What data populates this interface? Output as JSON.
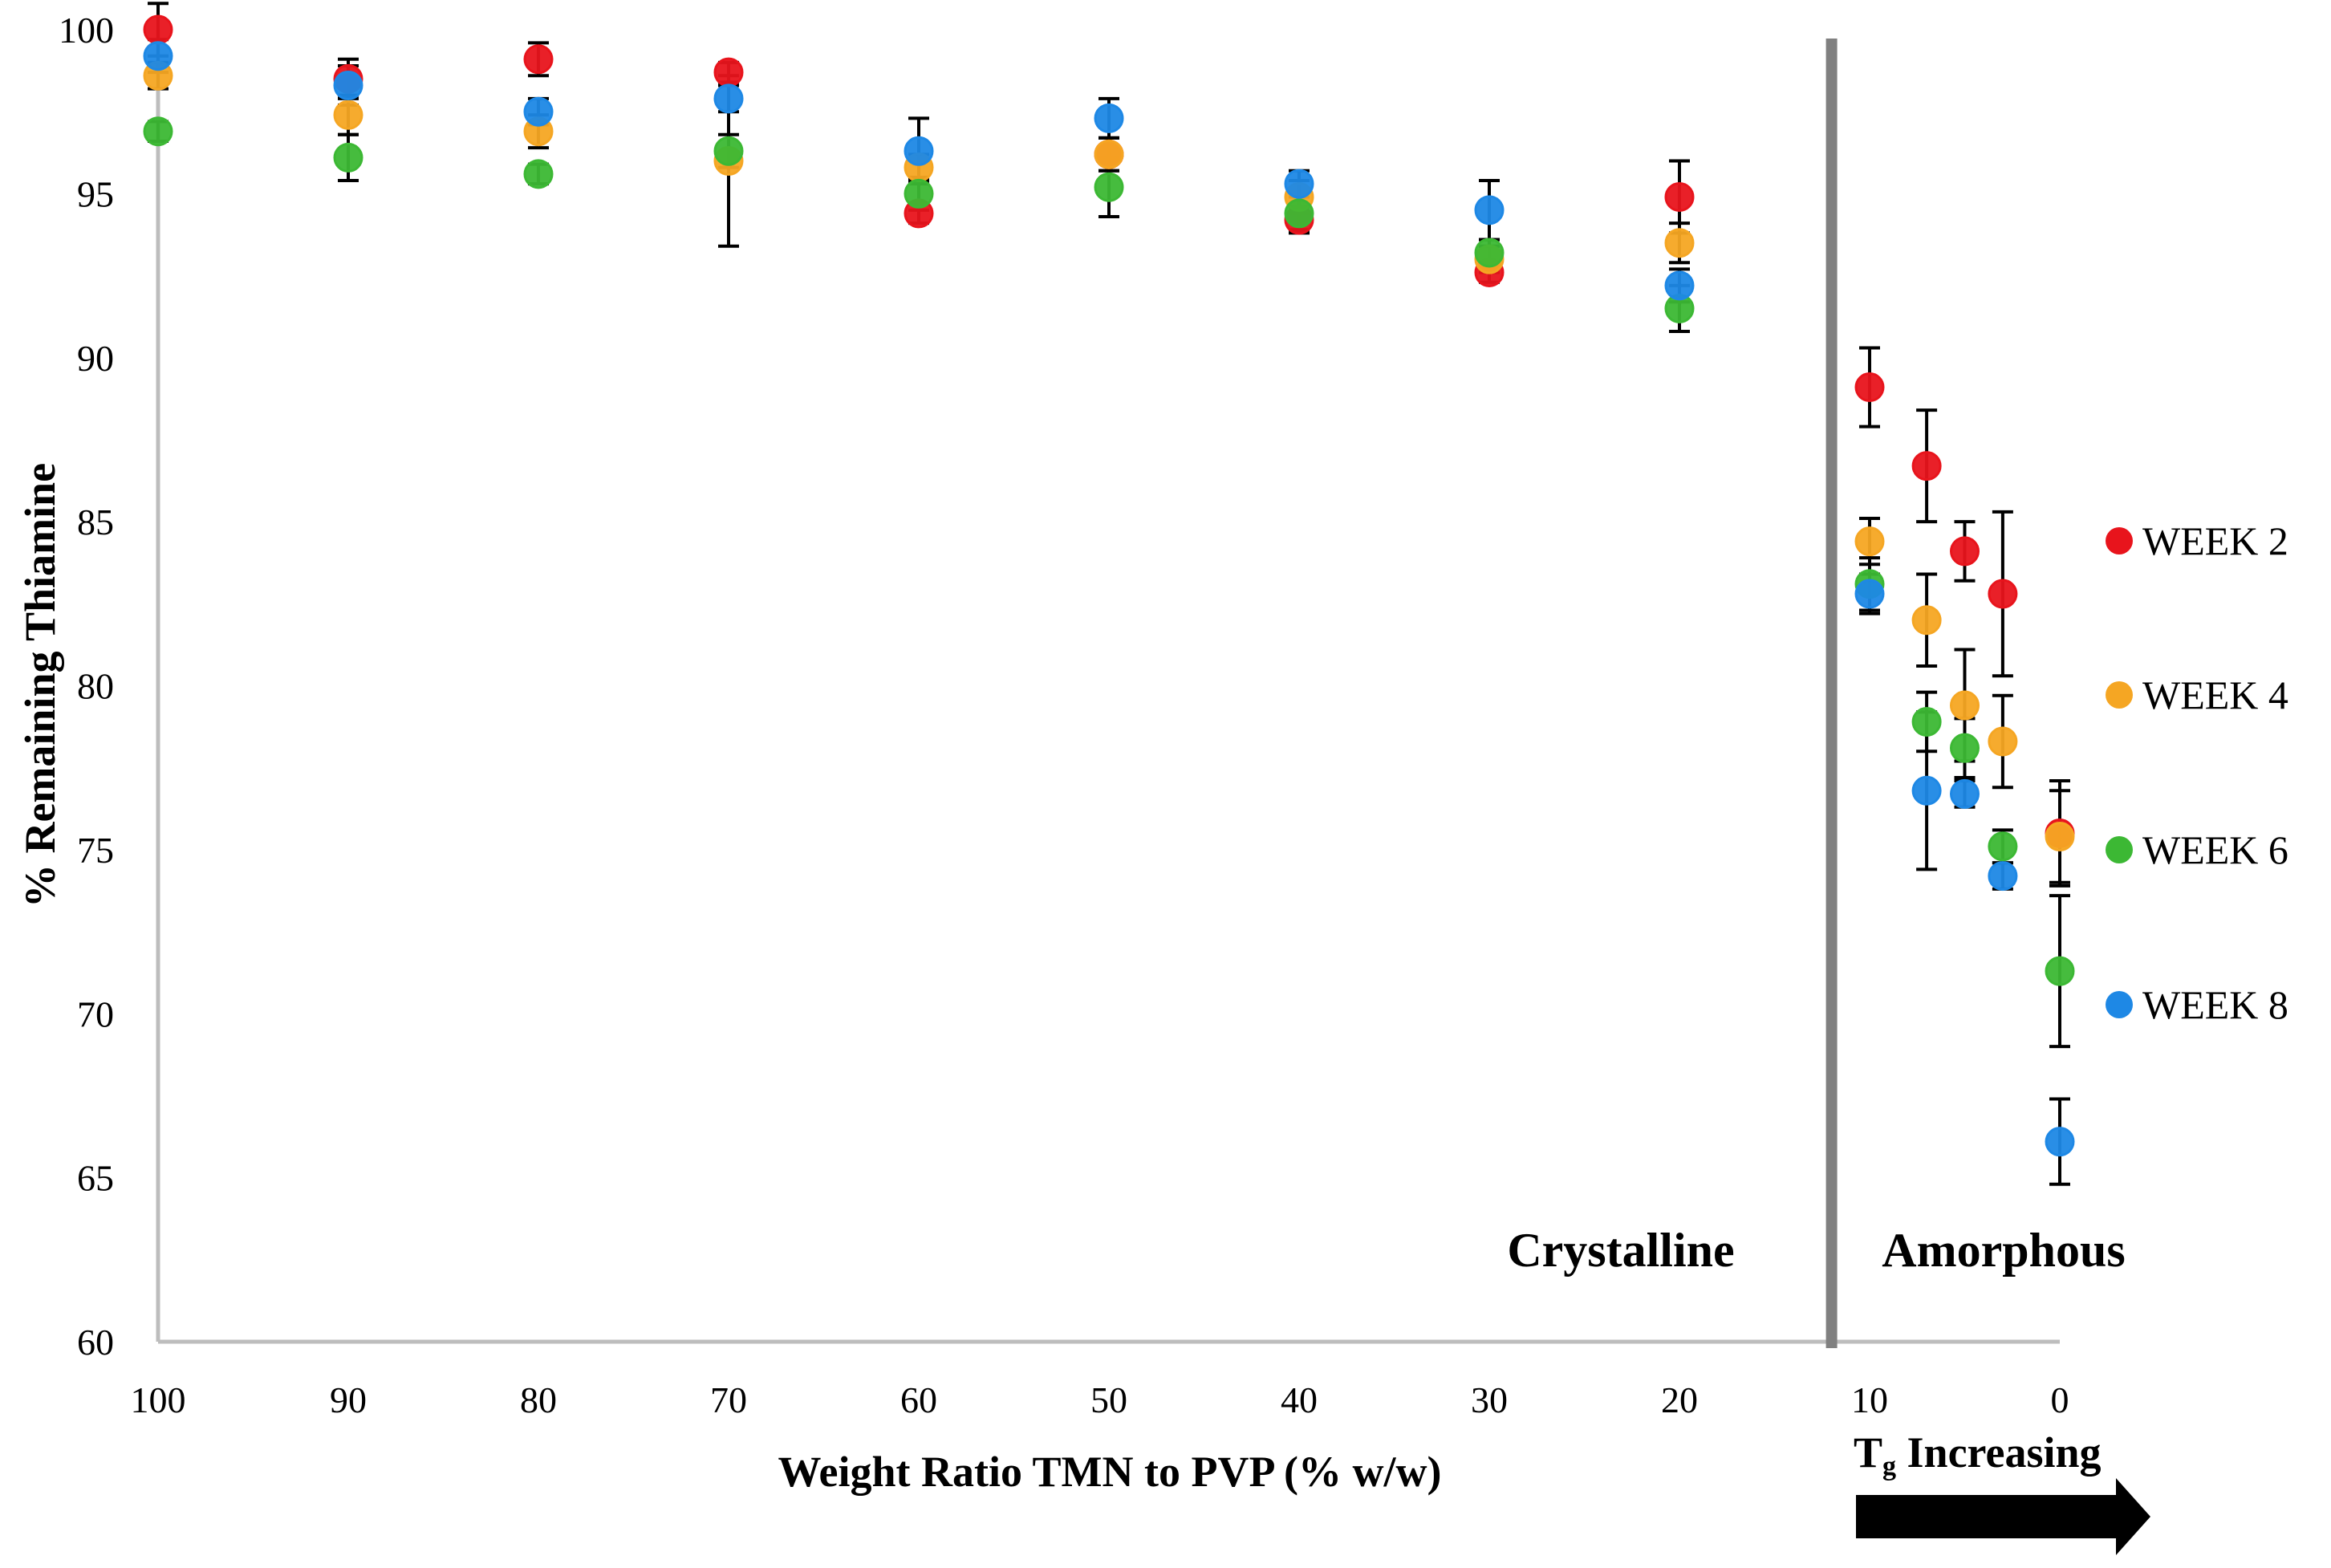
{
  "chart_data": {
    "type": "scatter",
    "title": "",
    "xlabel": "Weight Ratio TMN to PVP (% w/w)",
    "ylabel": "% Remaining Thiamine",
    "x_categories": [
      "100",
      "90",
      "80",
      "70",
      "60",
      "50",
      "40",
      "30",
      "20",
      "10",
      "0"
    ],
    "y_ticks": [
      "60",
      "65",
      "70",
      "75",
      "80",
      "85",
      "90",
      "95",
      "100"
    ],
    "xlim": [
      100,
      0
    ],
    "ylim": [
      60,
      100
    ],
    "grid": false,
    "legend_position": "right",
    "annotations": {
      "crystalline": "Crystalline",
      "amorphous": "Amorphous",
      "tg_main": "T",
      "tg_sub": "g",
      "tg_rest": " Increasing"
    },
    "divider_x": 12,
    "series": [
      {
        "name": "WEEK 2",
        "color": "#e8141c",
        "points": [
          {
            "x": 100,
            "y": 100.0,
            "err": 0.8
          },
          {
            "x": 90,
            "y": 98.5,
            "err": 0.6
          },
          {
            "x": 80,
            "y": 99.1,
            "err": 0.5
          },
          {
            "x": 70,
            "y": 98.7,
            "err": 0.3
          },
          {
            "x": 60,
            "y": 94.4,
            "err": 0.3
          },
          {
            "x": 50,
            "y": 96.2,
            "err": 0.5
          },
          {
            "x": 40,
            "y": 94.2,
            "err": 0.4
          },
          {
            "x": 30,
            "y": 92.6,
            "err": 0.3
          },
          {
            "x": 20,
            "y": 94.9,
            "err": 1.1
          },
          {
            "x": 10,
            "y": 89.1,
            "err": 1.2
          },
          {
            "x": 7,
            "y": 86.7,
            "err": 1.7
          },
          {
            "x": 5,
            "y": 84.1,
            "err": 0.9
          },
          {
            "x": 3,
            "y": 82.8,
            "err": 2.5
          },
          {
            "x": 0,
            "y": 75.5,
            "err": 1.6
          }
        ]
      },
      {
        "name": "WEEK 4",
        "color": "#f5a623",
        "points": [
          {
            "x": 100,
            "y": 98.6,
            "err": 0.4
          },
          {
            "x": 90,
            "y": 97.4,
            "err": 0.6
          },
          {
            "x": 80,
            "y": 96.9,
            "err": 0.5
          },
          {
            "x": 70,
            "y": 96.0,
            "err": 2.6
          },
          {
            "x": 60,
            "y": 95.8,
            "err": 0.4
          },
          {
            "x": 50,
            "y": 96.2,
            "err": 0.5
          },
          {
            "x": 40,
            "y": 94.9,
            "err": 0.5
          },
          {
            "x": 30,
            "y": 93.0,
            "err": 0.4
          },
          {
            "x": 20,
            "y": 93.5,
            "err": 0.6
          },
          {
            "x": 10,
            "y": 84.4,
            "err": 0.7
          },
          {
            "x": 7,
            "y": 82.0,
            "err": 1.4
          },
          {
            "x": 5,
            "y": 79.4,
            "err": 1.7
          },
          {
            "x": 3,
            "y": 78.3,
            "err": 1.4
          },
          {
            "x": 0,
            "y": 75.4,
            "err": 1.4
          }
        ]
      },
      {
        "name": "WEEK 6",
        "color": "#3cb834",
        "points": [
          {
            "x": 100,
            "y": 96.9,
            "err": 0.3
          },
          {
            "x": 90,
            "y": 96.1,
            "err": 0.7
          },
          {
            "x": 80,
            "y": 95.6,
            "err": 0.3
          },
          {
            "x": 70,
            "y": 96.3,
            "err": 0.5
          },
          {
            "x": 60,
            "y": 95.0,
            "err": 0.5
          },
          {
            "x": 50,
            "y": 95.2,
            "err": 0.9
          },
          {
            "x": 40,
            "y": 94.4,
            "err": 0.5
          },
          {
            "x": 30,
            "y": 93.2,
            "err": 0.4
          },
          {
            "x": 20,
            "y": 91.5,
            "err": 0.7
          },
          {
            "x": 10,
            "y": 83.1,
            "err": 0.8
          },
          {
            "x": 7,
            "y": 78.9,
            "err": 0.9
          },
          {
            "x": 5,
            "y": 78.1,
            "err": 0.9
          },
          {
            "x": 3,
            "y": 75.1,
            "err": 0.5
          },
          {
            "x": 0,
            "y": 71.3,
            "err": 2.3
          }
        ]
      },
      {
        "name": "WEEK 8",
        "color": "#1e88e5",
        "points": [
          {
            "x": 100,
            "y": 99.2,
            "err": 0.5
          },
          {
            "x": 90,
            "y": 98.3,
            "err": 0.6
          },
          {
            "x": 80,
            "y": 97.5,
            "err": 0.4
          },
          {
            "x": 70,
            "y": 97.9,
            "err": 0.4
          },
          {
            "x": 60,
            "y": 96.3,
            "err": 1.0
          },
          {
            "x": 50,
            "y": 97.3,
            "err": 0.6
          },
          {
            "x": 40,
            "y": 95.3,
            "err": 0.4
          },
          {
            "x": 30,
            "y": 94.5,
            "err": 0.9
          },
          {
            "x": 20,
            "y": 92.2,
            "err": 0.5
          },
          {
            "x": 10,
            "y": 82.8,
            "err": 0.6
          },
          {
            "x": 7,
            "y": 76.8,
            "err": 2.4
          },
          {
            "x": 5,
            "y": 76.7,
            "err": 0.4
          },
          {
            "x": 3,
            "y": 74.2,
            "err": 0.4
          },
          {
            "x": 0,
            "y": 66.1,
            "err": 1.3
          }
        ]
      }
    ]
  }
}
